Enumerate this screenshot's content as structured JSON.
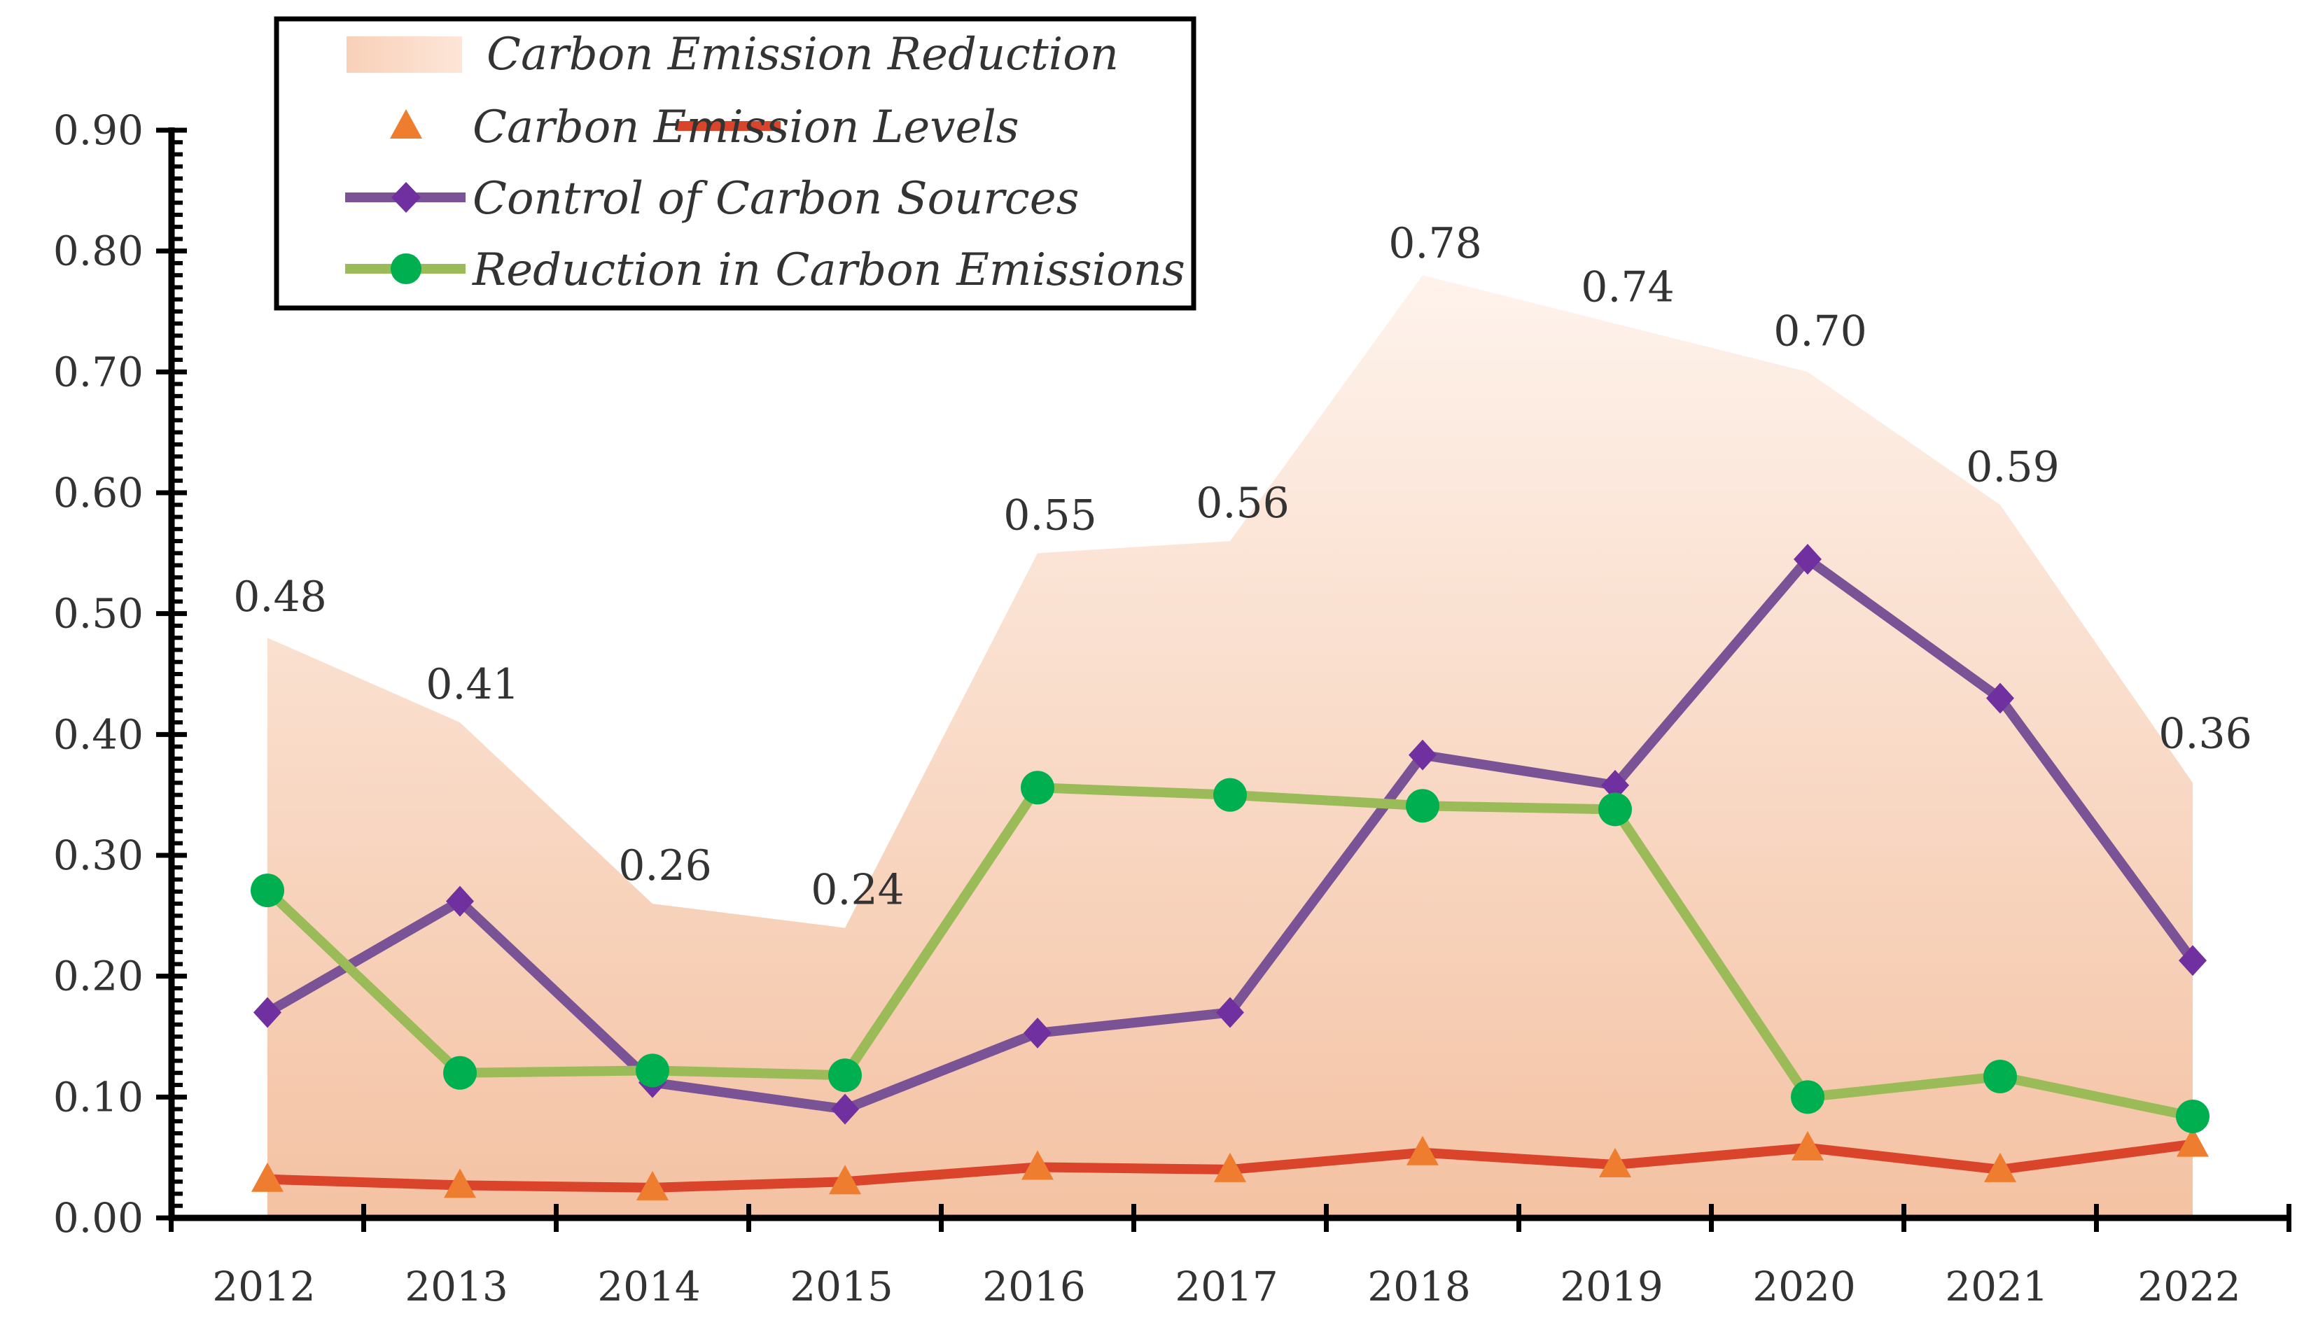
{
  "chart_data": {
    "type": "line",
    "title": "",
    "xlabel": "",
    "ylabel": "",
    "ylim": [
      0,
      0.9
    ],
    "ytick_step": 0.1,
    "ytick_labels": [
      "0.00",
      "0.10",
      "0.20",
      "0.30",
      "0.40",
      "0.50",
      "0.60",
      "0.70",
      "0.80",
      "0.90"
    ],
    "categories": [
      "2012",
      "2013",
      "2014",
      "2015",
      "2016",
      "2017",
      "2018",
      "2019",
      "2020",
      "2021",
      "2022"
    ],
    "area": {
      "name": "Carbon Emission Reduction",
      "values": [
        0.48,
        0.41,
        0.26,
        0.24,
        0.55,
        0.56,
        0.78,
        0.74,
        0.7,
        0.59,
        0.36
      ],
      "labels": [
        "0.48",
        "0.41",
        "0.26",
        "0.24",
        "0.55",
        "0.56",
        "0.78",
        "0.74",
        "0.70",
        "0.59",
        "0.36"
      ],
      "color_top": "#fef3ec",
      "color_bottom": "#f4c2a3"
    },
    "series": [
      {
        "name": "Carbon Emission Levels",
        "values": [
          0.032,
          0.027,
          0.025,
          0.03,
          0.042,
          0.04,
          0.054,
          0.044,
          0.058,
          0.04,
          0.061
        ],
        "line_color": "#d9442b",
        "marker": "triangle",
        "marker_color": "#ee7d2f"
      },
      {
        "name": "Control of Carbon Sources",
        "values": [
          0.17,
          0.262,
          0.112,
          0.09,
          0.153,
          0.17,
          0.383,
          0.358,
          0.545,
          0.43,
          0.213
        ],
        "line_color": "#7a5396",
        "marker": "diamond",
        "marker_color": "#7030a0"
      },
      {
        "name": "Reduction in Carbon Emissions",
        "values": [
          0.271,
          0.12,
          0.122,
          0.118,
          0.356,
          0.35,
          0.341,
          0.338,
          0.1,
          0.117,
          0.084
        ],
        "line_color": "#9bbb59",
        "marker": "circle",
        "marker_color": "#00b050"
      }
    ],
    "legend": {
      "position": "top-left",
      "entries": [
        "Carbon Emission Reduction",
        "Carbon Emission Levels",
        "Control of Carbon Sources",
        "Reduction in Carbon Emissions"
      ]
    },
    "grid": false
  }
}
